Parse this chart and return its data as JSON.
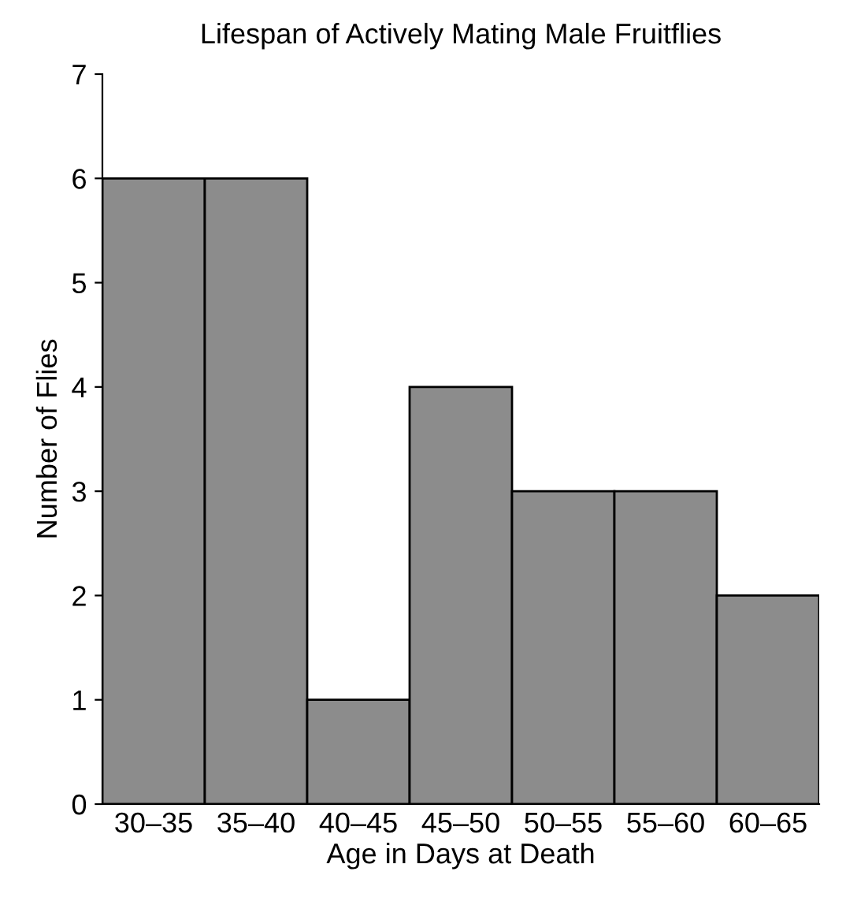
{
  "chart_data": {
    "type": "bar",
    "title": "Lifespan of Actively Mating Male Fruitflies",
    "xlabel": "Age in Days at Death",
    "ylabel": "Number of Flies",
    "categories": [
      "30–35",
      "35–40",
      "40–45",
      "45–50",
      "50–55",
      "55–60",
      "60–65"
    ],
    "values": [
      6,
      6,
      1,
      4,
      3,
      3,
      2
    ],
    "color": "#8c8c8c",
    "ylim": [
      0,
      7
    ],
    "yticks": [
      0,
      1,
      2,
      3,
      4,
      5,
      6,
      7
    ],
    "grid": false,
    "legend": false
  }
}
